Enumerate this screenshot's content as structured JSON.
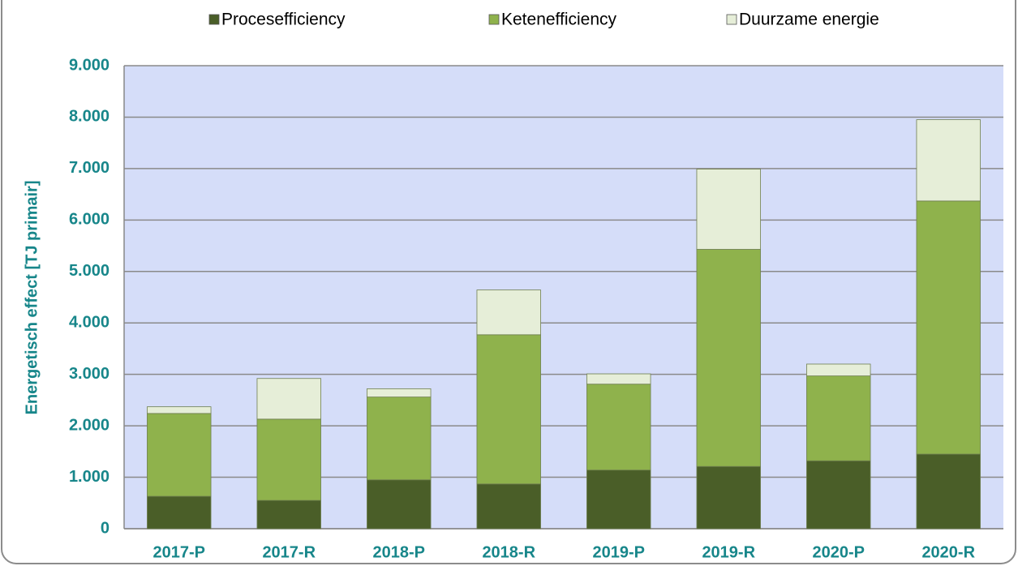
{
  "chart_data": {
    "type": "stacked_bar",
    "y_label": "Energetisch effect [TJ primair]",
    "categories": [
      "2017-P",
      "2017-R",
      "2018-P",
      "2018-R",
      "2019-P",
      "2019-R",
      "2020-P",
      "2020-R"
    ],
    "series": [
      {
        "name": "Procesefficiency",
        "color": "#4a5e28",
        "values": [
          630,
          550,
          950,
          870,
          1140,
          1210,
          1320,
          1450
        ]
      },
      {
        "name": "Ketenefficiency",
        "color": "#8fb24c",
        "values": [
          1610,
          1580,
          1610,
          2900,
          1670,
          4220,
          1650,
          4920
        ]
      },
      {
        "name": "Duurzame energie",
        "color": "#e6eed8",
        "values": [
          130,
          790,
          160,
          870,
          200,
          1560,
          230,
          1580
        ]
      }
    ],
    "ylim": [
      0,
      9000
    ],
    "yticks": [
      0,
      {
        "value": 1000,
        "label": "1.000"
      },
      {
        "value": 2000,
        "label": "2.000"
      },
      {
        "value": 3000,
        "label": "3.000"
      },
      {
        "value": 4000,
        "label": "4.000"
      },
      {
        "value": 5000,
        "label": "5.000"
      },
      {
        "value": 6000,
        "label": "6.000"
      },
      {
        "value": 7000,
        "label": "7.000"
      },
      {
        "value": 8000,
        "label": "8.000"
      },
      {
        "value": 9000,
        "label": "9.000"
      }
    ],
    "grid": true
  }
}
